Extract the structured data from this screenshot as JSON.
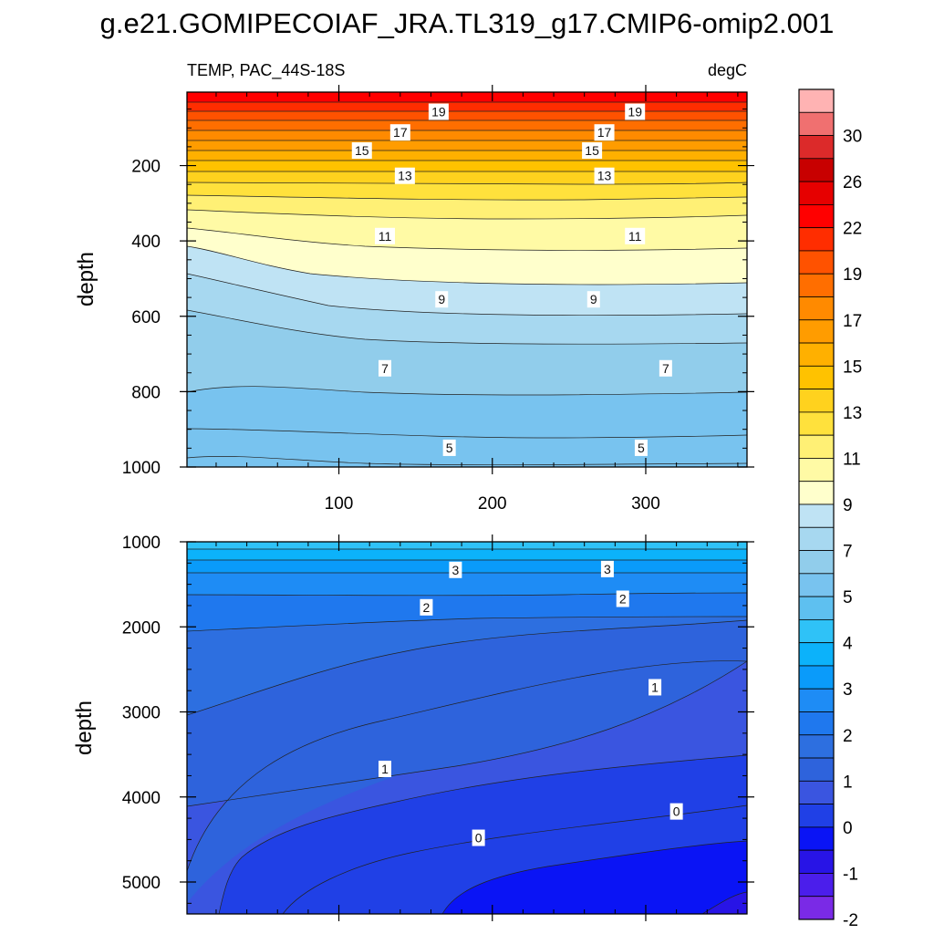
{
  "title": "g.e21.GOMIPECOIAF_JRA.TL319_g17.CMIP6-omip2.001",
  "chart_data": [
    {
      "type": "heatmap",
      "subtitle_left": "TEMP, PAC_44S-18S",
      "subtitle_right": "degC",
      "ylabel": "depth",
      "xlabel": "",
      "x_range": [
        1,
        366
      ],
      "ylim": [
        1000,
        5
      ],
      "y_reversed": true,
      "x_ticks": [
        100,
        200,
        300
      ],
      "x_tick_labels": [
        "100",
        "200",
        "300"
      ],
      "y_ticks": [
        200,
        400,
        600,
        800,
        1000
      ],
      "y_tick_labels": [
        "200",
        "400",
        "600",
        "800",
        "1000"
      ],
      "contour_labels": [
        {
          "text": "19",
          "x": 165,
          "y": 57
        },
        {
          "text": "19",
          "x": 293,
          "y": 57
        },
        {
          "text": "17",
          "x": 140,
          "y": 112
        },
        {
          "text": "17",
          "x": 273,
          "y": 112
        },
        {
          "text": "15",
          "x": 115,
          "y": 160
        },
        {
          "text": "15",
          "x": 265,
          "y": 160
        },
        {
          "text": "13",
          "x": 143,
          "y": 227
        },
        {
          "text": "13",
          "x": 273,
          "y": 227
        },
        {
          "text": "11",
          "x": 130,
          "y": 387
        },
        {
          "text": "11",
          "x": 293,
          "y": 387
        },
        {
          "text": "9",
          "x": 167,
          "y": 555
        },
        {
          "text": "9",
          "x": 266,
          "y": 555
        },
        {
          "text": "7",
          "x": 130,
          "y": 738
        },
        {
          "text": "7",
          "x": 313,
          "y": 738
        },
        {
          "text": "5",
          "x": 172,
          "y": 949
        },
        {
          "text": "5",
          "x": 297,
          "y": 949
        }
      ]
    },
    {
      "type": "heatmap",
      "ylabel": "depth",
      "xlabel": "",
      "x_range": [
        1,
        366
      ],
      "ylim": [
        5375,
        1000
      ],
      "y_reversed": true,
      "x_ticks": [
        100,
        200,
        300
      ],
      "x_tick_labels": [
        "",
        "",
        ""
      ],
      "y_ticks": [
        1000,
        2000,
        3000,
        4000,
        5000
      ],
      "y_tick_labels": [
        "1000",
        "2000",
        "3000",
        "4000",
        "5000"
      ],
      "contour_labels": [
        {
          "text": "3",
          "x": 176,
          "y": 1330
        },
        {
          "text": "3",
          "x": 275,
          "y": 1320
        },
        {
          "text": "2",
          "x": 157,
          "y": 1770
        },
        {
          "text": "2",
          "x": 285,
          "y": 1670
        },
        {
          "text": "1",
          "x": 306,
          "y": 2710
        },
        {
          "text": "1",
          "x": 130,
          "y": 3670
        },
        {
          "text": "0",
          "x": 320,
          "y": 4170
        },
        {
          "text": "0",
          "x": 191,
          "y": 4480
        }
      ]
    }
  ],
  "colorbar": {
    "labels": [
      "30",
      "26",
      "22",
      "19",
      "17",
      "15",
      "13",
      "11",
      "9",
      "7",
      "5",
      "4",
      "3",
      "2",
      "1",
      "0",
      "-1",
      "-2"
    ],
    "colors": [
      "#ffb3b3",
      "#f07070",
      "#dc2a2a",
      "#c80000",
      "#e60000",
      "#ff0000",
      "#ff2d00",
      "#ff5200",
      "#ff6e00",
      "#ff8a00",
      "#ff9c00",
      "#ffb000",
      "#ffc200",
      "#ffd21e",
      "#ffe13c",
      "#fff075",
      "#fffaa5",
      "#ffffcc",
      "#bfe3f4",
      "#a7d8f0",
      "#91cdeb",
      "#78c3ef",
      "#5ec0f0",
      "#2fc2f7",
      "#0cb2fa",
      "#0a9bfa",
      "#1e8cf5",
      "#1f78ee",
      "#2d6fe0",
      "#2e63dc",
      "#3a55e0",
      "#2040e6",
      "#0a14f5",
      "#2814e6",
      "#4b1eeb",
      "#7a2ae6"
    ]
  }
}
